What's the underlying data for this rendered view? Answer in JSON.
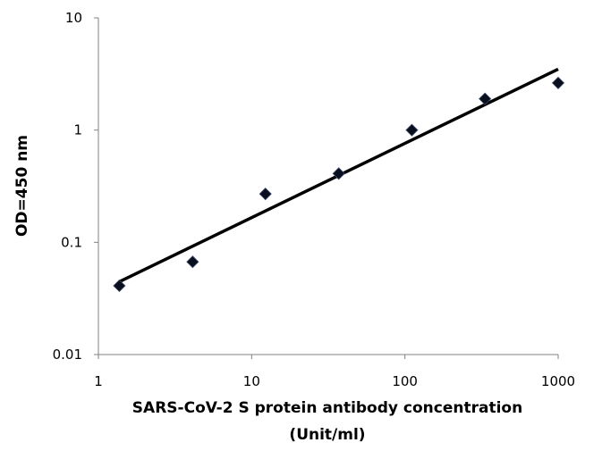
{
  "chart_data": {
    "type": "scatter",
    "xlabel": "SARS-CoV-2 S protein antibody concentration",
    "xlabel_line2": "(Unit/ml)",
    "ylabel": "OD=450 nm",
    "xscale": "log",
    "yscale": "log",
    "xlim": [
      1,
      1000
    ],
    "ylim": [
      0.01,
      10
    ],
    "xticks": [
      "1",
      "10",
      "100",
      "1000"
    ],
    "yticks": [
      "0.01",
      "0.1",
      "1",
      "10"
    ],
    "grid": false,
    "points": {
      "x": [
        1.37,
        4.12,
        12.3,
        37,
        111,
        333,
        1000
      ],
      "y": [
        0.041,
        0.067,
        0.27,
        0.41,
        1.0,
        1.9,
        2.63
      ]
    },
    "trendline": {
      "x": [
        1.39,
        1000
      ],
      "y": [
        0.045,
        3.49
      ]
    },
    "colors": {
      "marker": "#0a0f1e",
      "line": "#000000",
      "axis": "#808080"
    }
  }
}
